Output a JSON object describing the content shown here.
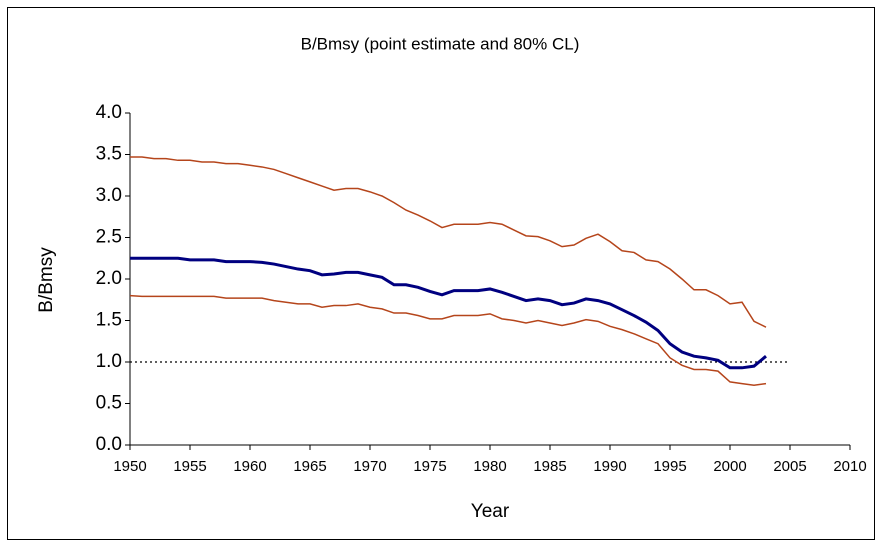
{
  "chart_data": {
    "type": "line",
    "title": "B/Bmsy (point estimate and 80% CL)",
    "x_label": "Year",
    "y_label": "B/Bmsy",
    "x": [
      1950,
      1951,
      1952,
      1953,
      1954,
      1955,
      1956,
      1957,
      1958,
      1959,
      1960,
      1961,
      1962,
      1963,
      1964,
      1965,
      1966,
      1967,
      1968,
      1969,
      1970,
      1971,
      1972,
      1973,
      1974,
      1975,
      1976,
      1977,
      1978,
      1979,
      1980,
      1981,
      1982,
      1983,
      1984,
      1985,
      1986,
      1987,
      1988,
      1989,
      1990,
      1991,
      1992,
      1993,
      1994,
      1995,
      1996,
      1997,
      1998,
      1999,
      2000,
      2001,
      2002,
      2003
    ],
    "series": [
      {
        "color": "#000080",
        "values": [
          2.25,
          2.25,
          2.25,
          2.25,
          2.25,
          2.23,
          2.23,
          2.23,
          2.21,
          2.21,
          2.21,
          2.2,
          2.18,
          2.15,
          2.12,
          2.1,
          2.05,
          2.06,
          2.08,
          2.08,
          2.05,
          2.02,
          1.93,
          1.93,
          1.9,
          1.85,
          1.81,
          1.86,
          1.86,
          1.86,
          1.88,
          1.84,
          1.79,
          1.74,
          1.76,
          1.74,
          1.69,
          1.71,
          1.76,
          1.74,
          1.7,
          1.63,
          1.56,
          1.48,
          1.38,
          1.22,
          1.12,
          1.07,
          1.05,
          1.02,
          0.93,
          0.93,
          0.95,
          1.07
        ]
      },
      {
        "color": "#b5451b",
        "values": [
          3.47,
          3.47,
          3.45,
          3.45,
          3.43,
          3.43,
          3.41,
          3.41,
          3.39,
          3.39,
          3.37,
          3.35,
          3.32,
          3.27,
          3.22,
          3.17,
          3.12,
          3.07,
          3.09,
          3.09,
          3.05,
          3.0,
          2.92,
          2.83,
          2.77,
          2.7,
          2.62,
          2.66,
          2.66,
          2.66,
          2.68,
          2.66,
          2.59,
          2.52,
          2.51,
          2.46,
          2.39,
          2.41,
          2.49,
          2.54,
          2.45,
          2.34,
          2.32,
          2.23,
          2.21,
          2.12,
          2.0,
          1.87,
          1.87,
          1.8,
          1.7,
          1.72,
          1.49,
          1.42
        ]
      },
      {
        "color": "#b5451b",
        "values": [
          1.8,
          1.79,
          1.79,
          1.79,
          1.79,
          1.79,
          1.79,
          1.79,
          1.77,
          1.77,
          1.77,
          1.77,
          1.74,
          1.72,
          1.7,
          1.7,
          1.66,
          1.68,
          1.68,
          1.7,
          1.66,
          1.64,
          1.59,
          1.59,
          1.56,
          1.52,
          1.52,
          1.56,
          1.56,
          1.56,
          1.58,
          1.52,
          1.5,
          1.47,
          1.5,
          1.47,
          1.44,
          1.47,
          1.51,
          1.49,
          1.43,
          1.39,
          1.34,
          1.28,
          1.22,
          1.05,
          0.96,
          0.91,
          0.91,
          0.89,
          0.76,
          0.74,
          0.72,
          0.74
        ]
      }
    ],
    "hline": 1,
    "xlim": [
      1950,
      2010
    ],
    "xticks": [
      1950,
      1955,
      1960,
      1965,
      1970,
      1975,
      1980,
      1985,
      1990,
      1995,
      2000,
      2005,
      2010
    ],
    "ylim": [
      0,
      4
    ],
    "yticks": [
      {
        "value": 0,
        "label": "0.0"
      },
      {
        "value": 0.5,
        "label": "0.5"
      },
      {
        "value": 1,
        "label": "1.0"
      },
      {
        "value": 1.5,
        "label": "1.5"
      },
      {
        "value": 2,
        "label": "2.0"
      },
      {
        "value": 2.5,
        "label": "2.5"
      },
      {
        "value": 3,
        "label": "3.0"
      },
      {
        "value": 3.5,
        "label": "3.5"
      },
      {
        "value": 4,
        "label": "4.0"
      }
    ]
  }
}
